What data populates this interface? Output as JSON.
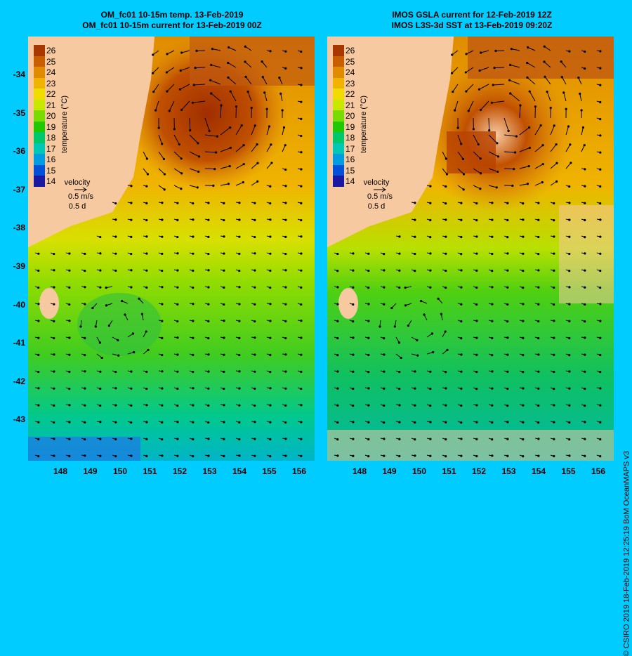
{
  "left_panel": {
    "title_line1": "OM_fc01 10-15m temp. 13-Feb-2019",
    "title_line2": "OM_fc01 10-15m current for 13-Feb-2019 00Z"
  },
  "right_panel": {
    "title_line1": "IMOS GSLA current for 12-Feb-2019 12Z",
    "title_line2": "IMOS L3S-3d SST at 13-Feb-2019 09:20Z"
  },
  "latitude_labels": [
    "-34",
    "-35",
    "-36",
    "-37",
    "-38",
    "-39",
    "-40",
    "-41",
    "-42",
    "-43"
  ],
  "longitude_labels": [
    "148",
    "149",
    "150",
    "151",
    "152",
    "153",
    "154",
    "155",
    "156"
  ],
  "colorbar": {
    "title": "temperature (°C)",
    "levels": [
      "26",
      "25",
      "24",
      "23",
      "22",
      "21",
      "20",
      "19",
      "18",
      "17",
      "16",
      "15",
      "14"
    ],
    "colors": [
      "#a83600",
      "#c85e00",
      "#e08c00",
      "#f0b400",
      "#f0dc00",
      "#c8e800",
      "#78dc00",
      "#20c800",
      "#00c86a",
      "#00c8b4",
      "#009ce0",
      "#0050d8",
      "#1818a0"
    ]
  },
  "velocity_legend": {
    "label": "velocity",
    "scale": "0.5 m/s",
    "duration": "0.5 d"
  },
  "credit": "© CSIRO 2019   18-Feb-2019 12:25:19 BoM OceanMAPS v3"
}
